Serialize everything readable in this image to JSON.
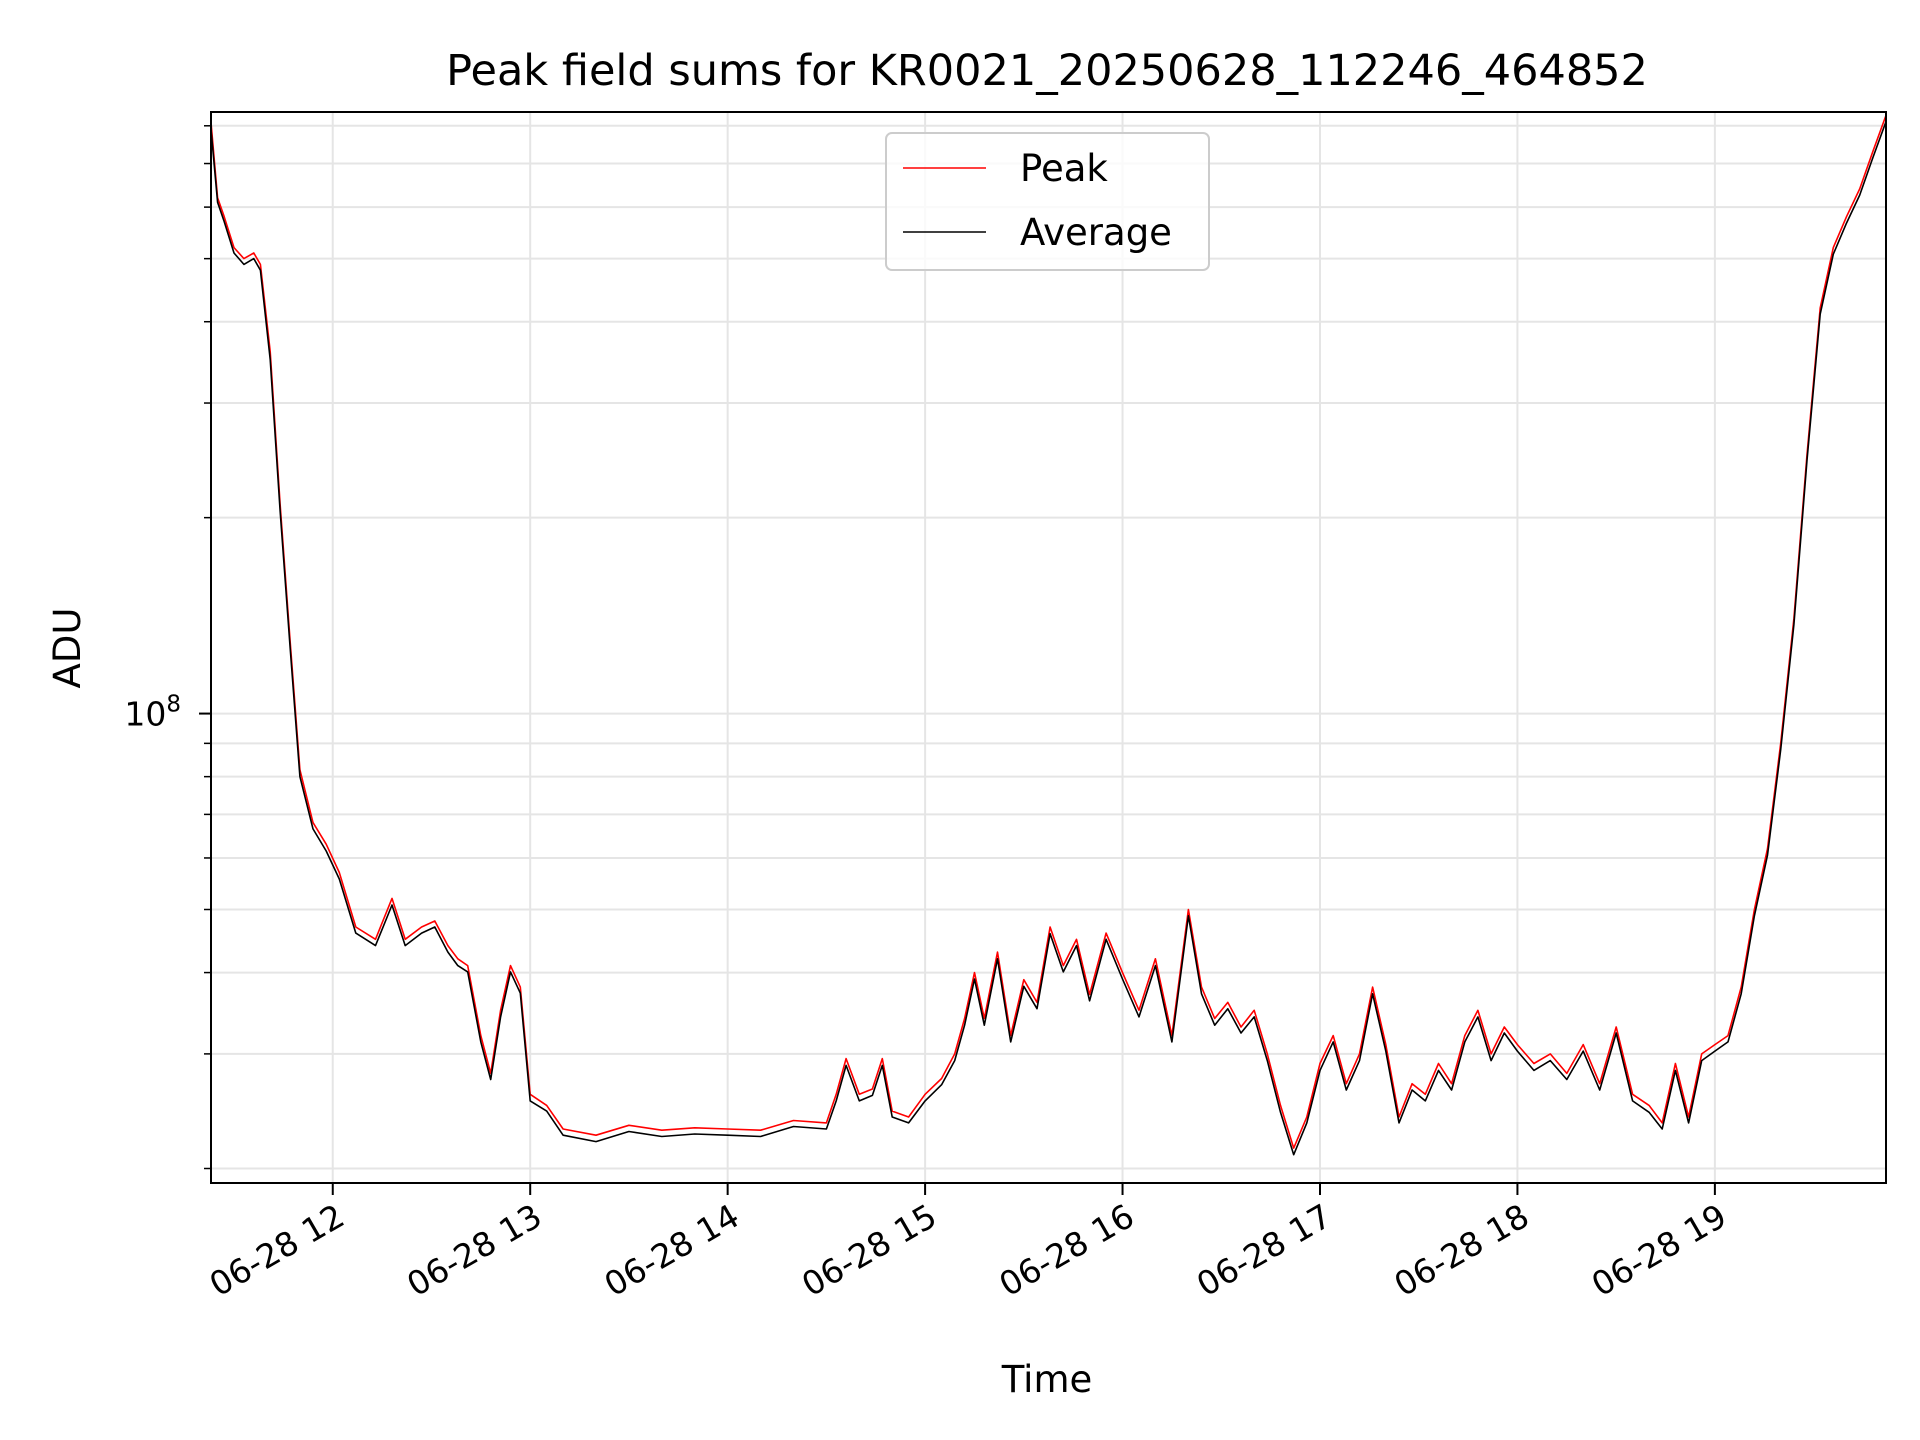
{
  "chart_data": {
    "type": "line",
    "title": "Peak field sums for KR0021_20250628_112246_464852",
    "xlabel": "Time",
    "ylabel": "ADU",
    "y_scale": "log",
    "grid": true,
    "legend_position": "top-center",
    "x_tick_labels": [
      "06-28 12",
      "06-28 13",
      "06-28 14",
      "06-28 15",
      "06-28 16",
      "06-28 17",
      "06-28 18",
      "06-28 19"
    ],
    "y_tick_labels": [
      {
        "base": "10",
        "exponent": "8",
        "value": 100000000
      }
    ],
    "x_range": [
      "2025-06-28 11:23",
      "2025-06-28 19:52"
    ],
    "ylim": [
      19000000,
      840000000
    ],
    "series": [
      {
        "name": "Peak",
        "color": "#ff0000",
        "points": [
          [
            "2025-06-28 11:23",
            810000000
          ],
          [
            "2025-06-28 11:25",
            620000000
          ],
          [
            "2025-06-28 11:27",
            580000000
          ],
          [
            "2025-06-28 11:30",
            520000000
          ],
          [
            "2025-06-28 11:33",
            500000000
          ],
          [
            "2025-06-28 11:36",
            510000000
          ],
          [
            "2025-06-28 11:38",
            490000000
          ],
          [
            "2025-06-28 11:41",
            360000000
          ],
          [
            "2025-06-28 11:44",
            210000000
          ],
          [
            "2025-06-28 11:47",
            130000000
          ],
          [
            "2025-06-28 11:50",
            82000000
          ],
          [
            "2025-06-28 11:54",
            68000000
          ],
          [
            "2025-06-28 11:58",
            63000000
          ],
          [
            "2025-06-28 12:02",
            57000000
          ],
          [
            "2025-06-28 12:07",
            47000000
          ],
          [
            "2025-06-28 12:13",
            45000000
          ],
          [
            "2025-06-28 12:18",
            52000000
          ],
          [
            "2025-06-28 12:22",
            45000000
          ],
          [
            "2025-06-28 12:27",
            47000000
          ],
          [
            "2025-06-28 12:31",
            48000000
          ],
          [
            "2025-06-28 12:35",
            44000000
          ],
          [
            "2025-06-28 12:38",
            42000000
          ],
          [
            "2025-06-28 12:41",
            41000000
          ],
          [
            "2025-06-28 12:45",
            32000000
          ],
          [
            "2025-06-28 12:48",
            28000000
          ],
          [
            "2025-06-28 12:51",
            35000000
          ],
          [
            "2025-06-28 12:54",
            41000000
          ],
          [
            "2025-06-28 12:57",
            38000000
          ],
          [
            "2025-06-28 13:00",
            26000000
          ],
          [
            "2025-06-28 13:05",
            25000000
          ],
          [
            "2025-06-28 13:10",
            23000000
          ],
          [
            "2025-06-28 13:20",
            22500000
          ],
          [
            "2025-06-28 13:30",
            23300000
          ],
          [
            "2025-06-28 13:40",
            22900000
          ],
          [
            "2025-06-28 13:50",
            23100000
          ],
          [
            "2025-06-28 14:00",
            23000000
          ],
          [
            "2025-06-28 14:10",
            22900000
          ],
          [
            "2025-06-28 14:20",
            23700000
          ],
          [
            "2025-06-28 14:30",
            23500000
          ],
          [
            "2025-06-28 14:33",
            26000000
          ],
          [
            "2025-06-28 14:36",
            29500000
          ],
          [
            "2025-06-28 14:40",
            26000000
          ],
          [
            "2025-06-28 14:44",
            26500000
          ],
          [
            "2025-06-28 14:47",
            29500000
          ],
          [
            "2025-06-28 14:50",
            24500000
          ],
          [
            "2025-06-28 14:55",
            24000000
          ],
          [
            "2025-06-28 15:00",
            26000000
          ],
          [
            "2025-06-28 15:05",
            27500000
          ],
          [
            "2025-06-28 15:09",
            30000000
          ],
          [
            "2025-06-28 15:12",
            34000000
          ],
          [
            "2025-06-28 15:15",
            40000000
          ],
          [
            "2025-06-28 15:18",
            34000000
          ],
          [
            "2025-06-28 15:22",
            43000000
          ],
          [
            "2025-06-28 15:26",
            32000000
          ],
          [
            "2025-06-28 15:30",
            39000000
          ],
          [
            "2025-06-28 15:34",
            36000000
          ],
          [
            "2025-06-28 15:38",
            47000000
          ],
          [
            "2025-06-28 15:42",
            41000000
          ],
          [
            "2025-06-28 15:46",
            45000000
          ],
          [
            "2025-06-28 15:50",
            37000000
          ],
          [
            "2025-06-28 15:55",
            46000000
          ],
          [
            "2025-06-28 16:00",
            40000000
          ],
          [
            "2025-06-28 16:05",
            35000000
          ],
          [
            "2025-06-28 16:10",
            42000000
          ],
          [
            "2025-06-28 16:15",
            32000000
          ],
          [
            "2025-06-28 16:20",
            50000000
          ],
          [
            "2025-06-28 16:24",
            38000000
          ],
          [
            "2025-06-28 16:28",
            34000000
          ],
          [
            "2025-06-28 16:32",
            36000000
          ],
          [
            "2025-06-28 16:36",
            33000000
          ],
          [
            "2025-06-28 16:40",
            35000000
          ],
          [
            "2025-06-28 16:44",
            30000000
          ],
          [
            "2025-06-28 16:48",
            25000000
          ],
          [
            "2025-06-28 16:52",
            21500000
          ],
          [
            "2025-06-28 16:56",
            24000000
          ],
          [
            "2025-06-28 17:00",
            29000000
          ],
          [
            "2025-06-28 17:04",
            32000000
          ],
          [
            "2025-06-28 17:08",
            27000000
          ],
          [
            "2025-06-28 17:12",
            30000000
          ],
          [
            "2025-06-28 17:16",
            38000000
          ],
          [
            "2025-06-28 17:20",
            31000000
          ],
          [
            "2025-06-28 17:24",
            24000000
          ],
          [
            "2025-06-28 17:28",
            27000000
          ],
          [
            "2025-06-28 17:32",
            26000000
          ],
          [
            "2025-06-28 17:36",
            29000000
          ],
          [
            "2025-06-28 17:40",
            27000000
          ],
          [
            "2025-06-28 17:44",
            32000000
          ],
          [
            "2025-06-28 17:48",
            35000000
          ],
          [
            "2025-06-28 17:52",
            30000000
          ],
          [
            "2025-06-28 17:56",
            33000000
          ],
          [
            "2025-06-28 18:00",
            31000000
          ],
          [
            "2025-06-28 18:05",
            29000000
          ],
          [
            "2025-06-28 18:10",
            30000000
          ],
          [
            "2025-06-28 18:15",
            28000000
          ],
          [
            "2025-06-28 18:20",
            31000000
          ],
          [
            "2025-06-28 18:25",
            27000000
          ],
          [
            "2025-06-28 18:30",
            33000000
          ],
          [
            "2025-06-28 18:35",
            26000000
          ],
          [
            "2025-06-28 18:40",
            25000000
          ],
          [
            "2025-06-28 18:44",
            23500000
          ],
          [
            "2025-06-28 18:48",
            29000000
          ],
          [
            "2025-06-28 18:52",
            24000000
          ],
          [
            "2025-06-28 18:56",
            30000000
          ],
          [
            "2025-06-28 19:00",
            31000000
          ],
          [
            "2025-06-28 19:04",
            32000000
          ],
          [
            "2025-06-28 19:08",
            38000000
          ],
          [
            "2025-06-28 19:12",
            50000000
          ],
          [
            "2025-06-28 19:16",
            62000000
          ],
          [
            "2025-06-28 19:20",
            90000000
          ],
          [
            "2025-06-28 19:24",
            140000000
          ],
          [
            "2025-06-28 19:28",
            250000000
          ],
          [
            "2025-06-28 19:32",
            420000000
          ],
          [
            "2025-06-28 19:36",
            520000000
          ],
          [
            "2025-06-28 19:40",
            580000000
          ],
          [
            "2025-06-28 19:44",
            640000000
          ],
          [
            "2025-06-28 19:48",
            730000000
          ],
          [
            "2025-06-28 19:52",
            830000000
          ]
        ]
      },
      {
        "name": "Average",
        "color": "#000000",
        "points": [
          [
            "2025-06-28 11:23",
            790000000
          ],
          [
            "2025-06-28 11:25",
            610000000
          ],
          [
            "2025-06-28 11:27",
            570000000
          ],
          [
            "2025-06-28 11:30",
            510000000
          ],
          [
            "2025-06-28 11:33",
            490000000
          ],
          [
            "2025-06-28 11:36",
            500000000
          ],
          [
            "2025-06-28 11:38",
            480000000
          ],
          [
            "2025-06-28 11:41",
            350000000
          ],
          [
            "2025-06-28 11:44",
            205000000
          ],
          [
            "2025-06-28 11:47",
            127000000
          ],
          [
            "2025-06-28 11:50",
            80000000
          ],
          [
            "2025-06-28 11:54",
            66500000
          ],
          [
            "2025-06-28 11:58",
            61500000
          ],
          [
            "2025-06-28 12:02",
            55700000
          ],
          [
            "2025-06-28 12:07",
            46000000
          ],
          [
            "2025-06-28 12:13",
            44000000
          ],
          [
            "2025-06-28 12:18",
            50800000
          ],
          [
            "2025-06-28 12:22",
            44000000
          ],
          [
            "2025-06-28 12:27",
            46000000
          ],
          [
            "2025-06-28 12:31",
            47000000
          ],
          [
            "2025-06-28 12:35",
            43000000
          ],
          [
            "2025-06-28 12:38",
            41000000
          ],
          [
            "2025-06-28 12:41",
            40100000
          ],
          [
            "2025-06-28 12:45",
            31300000
          ],
          [
            "2025-06-28 12:48",
            27400000
          ],
          [
            "2025-06-28 12:51",
            34200000
          ],
          [
            "2025-06-28 12:54",
            40100000
          ],
          [
            "2025-06-28 12:57",
            37200000
          ],
          [
            "2025-06-28 13:00",
            25400000
          ],
          [
            "2025-06-28 13:05",
            24500000
          ],
          [
            "2025-06-28 13:10",
            22500000
          ],
          [
            "2025-06-28 13:20",
            22000000
          ],
          [
            "2025-06-28 13:30",
            22800000
          ],
          [
            "2025-06-28 13:40",
            22400000
          ],
          [
            "2025-06-28 13:50",
            22600000
          ],
          [
            "2025-06-28 14:00",
            22500000
          ],
          [
            "2025-06-28 14:10",
            22400000
          ],
          [
            "2025-06-28 14:20",
            23200000
          ],
          [
            "2025-06-28 14:30",
            23000000
          ],
          [
            "2025-06-28 14:33",
            25400000
          ],
          [
            "2025-06-28 14:36",
            28800000
          ],
          [
            "2025-06-28 14:40",
            25400000
          ],
          [
            "2025-06-28 14:44",
            25900000
          ],
          [
            "2025-06-28 14:47",
            28800000
          ],
          [
            "2025-06-28 14:50",
            24000000
          ],
          [
            "2025-06-28 14:55",
            23500000
          ],
          [
            "2025-06-28 15:00",
            25400000
          ],
          [
            "2025-06-28 15:05",
            26900000
          ],
          [
            "2025-06-28 15:09",
            29300000
          ],
          [
            "2025-06-28 15:12",
            33200000
          ],
          [
            "2025-06-28 15:15",
            39100000
          ],
          [
            "2025-06-28 15:18",
            33200000
          ],
          [
            "2025-06-28 15:22",
            42000000
          ],
          [
            "2025-06-28 15:26",
            31300000
          ],
          [
            "2025-06-28 15:30",
            38100000
          ],
          [
            "2025-06-28 15:34",
            35200000
          ],
          [
            "2025-06-28 15:38",
            45900000
          ],
          [
            "2025-06-28 15:42",
            40100000
          ],
          [
            "2025-06-28 15:46",
            44000000
          ],
          [
            "2025-06-28 15:50",
            36200000
          ],
          [
            "2025-06-28 15:55",
            45000000
          ],
          [
            "2025-06-28 16:00",
            39100000
          ],
          [
            "2025-06-28 16:05",
            34200000
          ],
          [
            "2025-06-28 16:10",
            41000000
          ],
          [
            "2025-06-28 16:15",
            31300000
          ],
          [
            "2025-06-28 16:20",
            48900000
          ],
          [
            "2025-06-28 16:24",
            37100000
          ],
          [
            "2025-06-28 16:28",
            33200000
          ],
          [
            "2025-06-28 16:32",
            35200000
          ],
          [
            "2025-06-28 16:36",
            32300000
          ],
          [
            "2025-06-28 16:40",
            34200000
          ],
          [
            "2025-06-28 16:44",
            29300000
          ],
          [
            "2025-06-28 16:48",
            24400000
          ],
          [
            "2025-06-28 16:52",
            21000000
          ],
          [
            "2025-06-28 16:56",
            23500000
          ],
          [
            "2025-06-28 17:00",
            28300000
          ],
          [
            "2025-06-28 17:04",
            31300000
          ],
          [
            "2025-06-28 17:08",
            26400000
          ],
          [
            "2025-06-28 17:12",
            29300000
          ],
          [
            "2025-06-28 17:16",
            37100000
          ],
          [
            "2025-06-28 17:20",
            30300000
          ],
          [
            "2025-06-28 17:24",
            23500000
          ],
          [
            "2025-06-28 17:28",
            26400000
          ],
          [
            "2025-06-28 17:32",
            25400000
          ],
          [
            "2025-06-28 17:36",
            28300000
          ],
          [
            "2025-06-28 17:40",
            26400000
          ],
          [
            "2025-06-28 17:44",
            31300000
          ],
          [
            "2025-06-28 17:48",
            34200000
          ],
          [
            "2025-06-28 17:52",
            29300000
          ],
          [
            "2025-06-28 17:56",
            32300000
          ],
          [
            "2025-06-28 18:00",
            30300000
          ],
          [
            "2025-06-28 18:05",
            28300000
          ],
          [
            "2025-06-28 18:10",
            29300000
          ],
          [
            "2025-06-28 18:15",
            27400000
          ],
          [
            "2025-06-28 18:20",
            30300000
          ],
          [
            "2025-06-28 18:25",
            26400000
          ],
          [
            "2025-06-28 18:30",
            32300000
          ],
          [
            "2025-06-28 18:35",
            25400000
          ],
          [
            "2025-06-28 18:40",
            24400000
          ],
          [
            "2025-06-28 18:44",
            23000000
          ],
          [
            "2025-06-28 18:48",
            28300000
          ],
          [
            "2025-06-28 18:52",
            23500000
          ],
          [
            "2025-06-28 18:56",
            29300000
          ],
          [
            "2025-06-28 19:00",
            30300000
          ],
          [
            "2025-06-28 19:04",
            31300000
          ],
          [
            "2025-06-28 19:08",
            37100000
          ],
          [
            "2025-06-28 19:12",
            48900000
          ],
          [
            "2025-06-28 19:16",
            60600000
          ],
          [
            "2025-06-28 19:20",
            88000000
          ],
          [
            "2025-06-28 19:24",
            137000000
          ],
          [
            "2025-06-28 19:28",
            245000000
          ],
          [
            "2025-06-28 19:32",
            411000000
          ],
          [
            "2025-06-28 19:36",
            508000000
          ],
          [
            "2025-06-28 19:40",
            567000000
          ],
          [
            "2025-06-28 19:44",
            626000000
          ],
          [
            "2025-06-28 19:48",
            714000000
          ],
          [
            "2025-06-28 19:52",
            812000000
          ]
        ]
      }
    ]
  }
}
